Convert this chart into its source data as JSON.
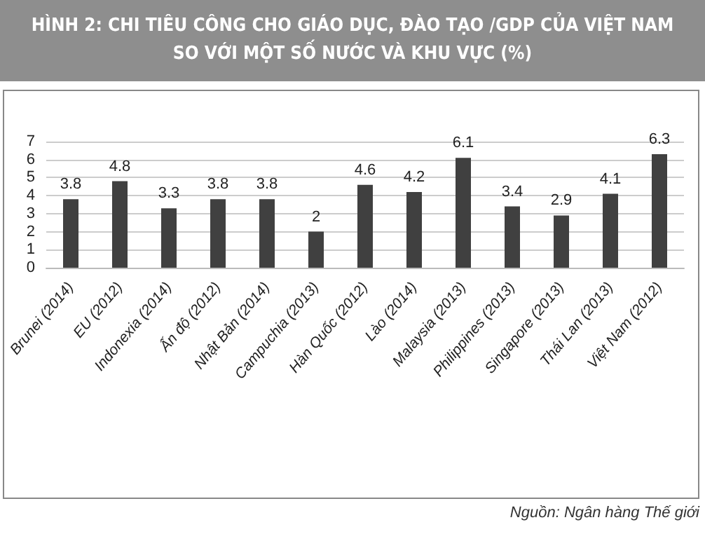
{
  "chart_data": {
    "type": "bar",
    "title": "HÌNH 2: CHI TIÊU CÔNG CHO GIÁO DỤC, ĐÀO TẠO /GDP CỦA VIỆT NAM SO VỚI MỘT SỐ NƯỚC VÀ KHU VỰC (%)",
    "categories": [
      "Brunei (2014)",
      "EU (2012)",
      "Indonexia (2014)",
      "Ấn độ (2012)",
      "Nhật Bản (2014)",
      "Campuchia (2013)",
      "Hàn Quốc (2012)",
      "Lào (2014)",
      "Malaysia (2013)",
      "Philippines (2013)",
      "Singapore (2013)",
      "Thái Lan (2013)",
      "Việt Nam (2012)"
    ],
    "values": [
      3.8,
      4.8,
      3.3,
      3.8,
      3.8,
      2,
      4.6,
      4.2,
      6.1,
      3.4,
      2.9,
      4.1,
      6.3
    ],
    "color": "#404040",
    "ylim": [
      0,
      7
    ],
    "yticks": [
      0,
      1,
      2,
      3,
      4,
      5,
      6,
      7
    ],
    "grid": true,
    "data_labels": true,
    "annotations": [
      "Nguồn: Ngân hàng Thế giới"
    ]
  }
}
